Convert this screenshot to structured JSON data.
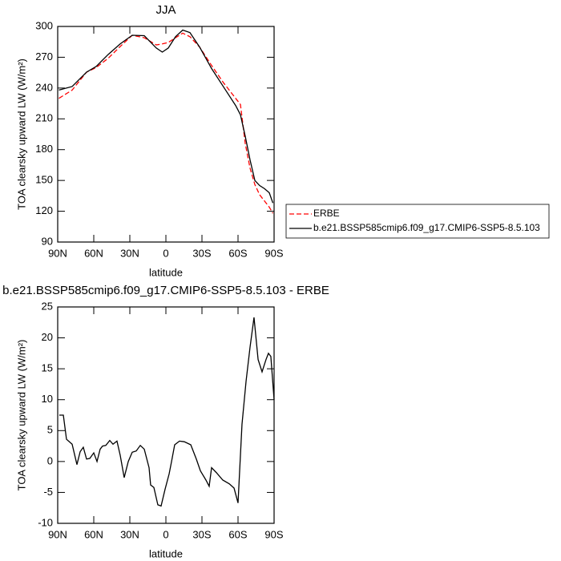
{
  "chart_data": [
    {
      "type": "line",
      "title": "JJA",
      "xlabel": "latitude",
      "ylabel": "TOA clearsky upward LW (W/m²)",
      "x": [
        89,
        78,
        66,
        58,
        48,
        38,
        28,
        18,
        8,
        3,
        -2,
        -8,
        -14,
        -20,
        -28,
        -38,
        -48,
        -58,
        -62,
        -66,
        -70,
        -74,
        -78,
        -82,
        -86,
        -89
      ],
      "series": [
        {
          "name": "ERBE",
          "color": "#ff0000",
          "line_style": "dashed",
          "values": [
            230,
            238,
            255.5,
            260,
            269,
            280.5,
            291.4,
            289,
            282,
            283,
            284.4,
            289,
            293.5,
            290,
            280,
            262,
            245,
            230,
            224,
            186,
            162,
            146,
            136,
            130,
            124,
            118
          ]
        },
        {
          "name": "b.e21.BSSP585cmip6.f09_g17.CMIP6-SSP5-8.5.103",
          "color": "#000000",
          "line_style": "solid",
          "values": [
            238,
            241.5,
            255.5,
            261,
            272.7,
            283,
            291.4,
            291,
            279,
            275,
            279,
            290,
            296.5,
            294,
            280,
            259,
            241,
            223,
            214,
            193,
            170,
            150,
            145,
            142,
            138,
            128
          ]
        }
      ],
      "xlim": [
        90,
        -90
      ],
      "ylim": [
        90,
        300
      ],
      "xticks": [
        {
          "value": 90,
          "label": "90N"
        },
        {
          "value": 60,
          "label": "60N"
        },
        {
          "value": 30,
          "label": "30N"
        },
        0,
        {
          "value": -30,
          "label": "30S"
        },
        {
          "value": -60,
          "label": "60S"
        },
        {
          "value": -90,
          "label": "90S"
        }
      ],
      "yticks": [
        90,
        120,
        150,
        180,
        210,
        240,
        270,
        300
      ],
      "legend": "right"
    },
    {
      "type": "line",
      "title": "b.e21.BSSP585cmip6.f09_g17.CMIP6-SSP5-8.5.103 - ERBE",
      "xlabel": "latitude",
      "ylabel": "TOA clearsky upward LW (W/m²)",
      "x": [
        88.7,
        85.3,
        82.7,
        78,
        74,
        71.3,
        68.7,
        66,
        63.3,
        60,
        57.3,
        54.7,
        52.7,
        50,
        46.7,
        44,
        40.7,
        38,
        34.7,
        31.3,
        28,
        24.7,
        21.3,
        18,
        14,
        12.7,
        10,
        6.7,
        4,
        0.7,
        -2.7,
        -4.7,
        -7.3,
        -11.3,
        -15.3,
        -20.7,
        -25.3,
        -28.7,
        -33.3,
        -36,
        -38,
        -42,
        -47.3,
        -52.7,
        -56.7,
        -60,
        -63.3,
        -66.7,
        -70,
        -73.3,
        -76.7,
        -80,
        -83.3,
        -85.3,
        -87.3,
        -90
      ],
      "series": [
        {
          "color": "#000000",
          "line_style": "solid",
          "values": [
            7.5,
            7.5,
            3.6,
            2.8,
            -0.5,
            1.6,
            2.3,
            0.4,
            0.5,
            1.4,
            0,
            2,
            2.5,
            2.6,
            3.4,
            2.8,
            3.3,
            1,
            -2.6,
            0,
            1.5,
            1.7,
            2.6,
            2,
            -1,
            -3.8,
            -4.2,
            -7,
            -7.2,
            -4.5,
            -2,
            0,
            2.7,
            3.3,
            3.2,
            2.7,
            0.4,
            -1.5,
            -3,
            -4,
            -1,
            -1.8,
            -3,
            -3.6,
            -4.3,
            -6.7,
            6,
            13,
            18.5,
            23.3,
            16.5,
            14.5,
            16.5,
            17.5,
            17,
            10
          ]
        }
      ],
      "xlim": [
        90,
        -90
      ],
      "ylim": [
        -10,
        25
      ],
      "xticks": [
        {
          "value": 90,
          "label": "90N"
        },
        {
          "value": 60,
          "label": "60N"
        },
        {
          "value": 30,
          "label": "30N"
        },
        0,
        {
          "value": -30,
          "label": "30S"
        },
        {
          "value": -60,
          "label": "60S"
        },
        {
          "value": -90,
          "label": "90S"
        }
      ],
      "yticks": [
        -10,
        -5,
        0,
        5,
        10,
        15,
        20,
        25
      ]
    }
  ]
}
